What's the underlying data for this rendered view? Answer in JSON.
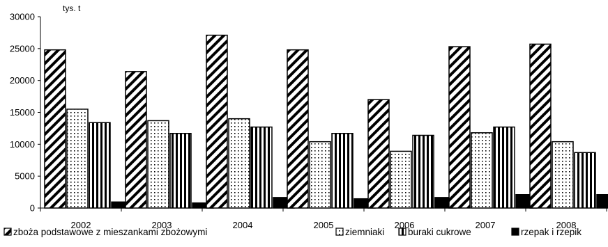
{
  "chart_data": {
    "type": "bar",
    "title": "",
    "ylabel": "tys. t",
    "xlabel": "",
    "ylim": [
      0,
      30000
    ],
    "yticks": [
      "0",
      "5000",
      "10000",
      "15000",
      "20000",
      "25000",
      "30000"
    ],
    "grid": false,
    "legend_position": "bottom",
    "categories": [
      "2002",
      "2003",
      "2004",
      "2005",
      "2006",
      "2007",
      "2008"
    ],
    "series": [
      {
        "name": "zboża podstawowe z mieszankami zbożowymi",
        "pattern": "diagonal",
        "values": [
          24800,
          21400,
          27100,
          24800,
          17000,
          25300,
          25700
        ]
      },
      {
        "name": "ziemniaki",
        "pattern": "dots",
        "values": [
          15500,
          13700,
          14000,
          10400,
          8900,
          11800,
          10400
        ]
      },
      {
        "name": "buraki cukrowe",
        "pattern": "vertical",
        "values": [
          13400,
          11700,
          12700,
          11700,
          11400,
          12700,
          8700
        ]
      },
      {
        "name": "rzepak i rzepik",
        "pattern": "solid",
        "values": [
          950,
          800,
          1650,
          1450,
          1650,
          2100,
          2100
        ]
      }
    ]
  }
}
